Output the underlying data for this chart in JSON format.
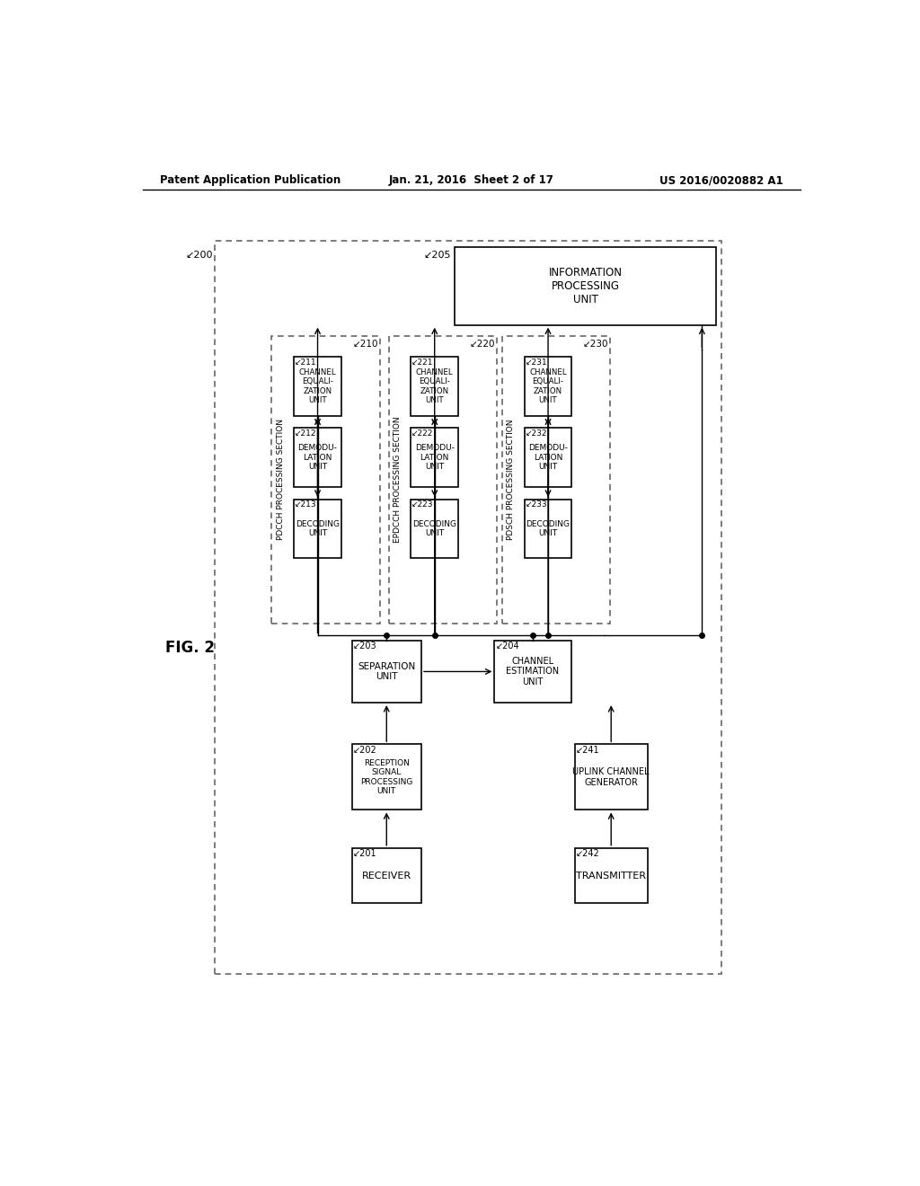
{
  "fig_label": "FIG. 2",
  "header_left": "Patent Application Publication",
  "header_mid": "Jan. 21, 2016  Sheet 2 of 17",
  "header_right": "US 2016/0020882 A1",
  "bg": "#ffffff",
  "lc": "#000000",
  "dc": "#666666"
}
